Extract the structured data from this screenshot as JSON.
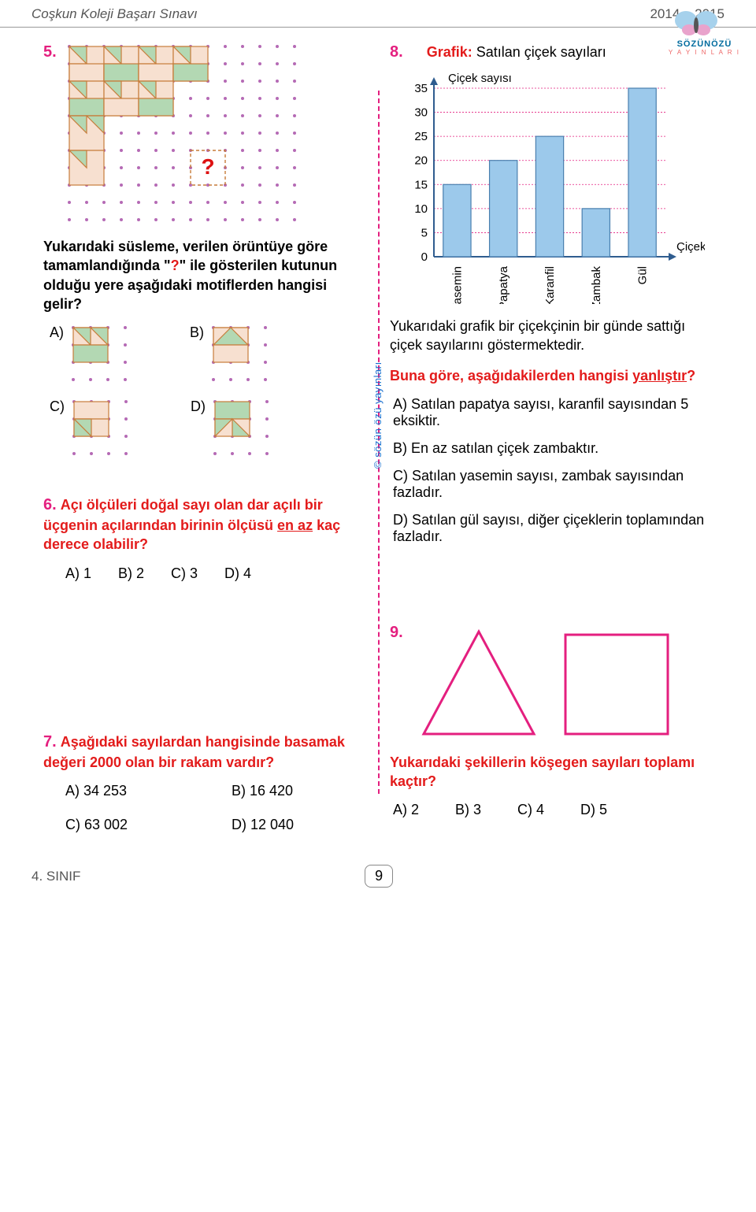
{
  "header": {
    "exam_name": "Coşkun Koleji Başarı Sınavı",
    "year": "2014 – 2015",
    "brand_top": "SÖZÜNÖZÜ",
    "brand_sub": "Y A Y I N L A R I"
  },
  "footer": {
    "grade": "4. SINIF",
    "page_number": "9"
  },
  "side_credit": "© sözün özü yayınları",
  "q5": {
    "number": "5.",
    "grid": {
      "cols": 13,
      "rows": 10,
      "cell": 22,
      "dot_color": "#b56ab5",
      "fill_beige": "#f7e0d0",
      "fill_green": "#b3d8b3",
      "border": "#c77c3a",
      "question_mark": "?"
    },
    "text_before": "Yukarıdaki süsleme, verilen örüntüye göre tamamlandığında \"",
    "text_qmark": "?",
    "text_after": "\" ile gösterilen kutunun olduğu yere aşağıdaki motiflerden hangisi gelir?",
    "options": {
      "A": "A)",
      "B": "B)",
      "C": "C)",
      "D": "D)",
      "tile": {
        "size": 48,
        "dot_color": "#b56ab5",
        "fill_beige": "#f7e0d0",
        "fill_green": "#b3d8b3",
        "border": "#c77c3a"
      }
    }
  },
  "q6": {
    "number": "6.",
    "text": "Açı ölçüleri doğal sayı olan dar açılı bir üçgenin açılarından birinin ölçüsü en az kaç derece olabilir?",
    "underline": "en az",
    "options": {
      "A": "A) 1",
      "B": "B) 2",
      "C": "C) 3",
      "D": "D) 4"
    }
  },
  "q7": {
    "number": "7.",
    "text": "Aşağıdaki sayılardan hangisinde basamak değeri 2000 olan bir rakam vardır?",
    "options": {
      "A": "A) 34 253",
      "B": "B) 16 420",
      "C": "C) 63 002",
      "D": "D) 12 040"
    }
  },
  "q8": {
    "number": "8.",
    "title_colored": "Grafik:",
    "title_rest": " Satılan çiçek sayıları",
    "chart": {
      "type": "bar",
      "y_axis_label": "Çiçek sayısı",
      "x_axis_label": "Çiçek",
      "categories": [
        "Yasemin",
        "Papatya",
        "Karanfil",
        "Zambak",
        "Gül"
      ],
      "values": [
        15,
        20,
        25,
        10,
        35
      ],
      "ylim": [
        0,
        35
      ],
      "yticks": [
        0,
        5,
        10,
        15,
        20,
        25,
        30,
        35
      ],
      "bar_color": "#9cc9eb",
      "bar_stroke": "#4a7fae",
      "grid_color": "#e41f7f",
      "axis_color": "#2f5c8f",
      "label_color": "#000",
      "bar_width": 0.6,
      "font_size": 15,
      "background": "#ffffff"
    },
    "body_text": "Yukarıdaki grafik bir çiçekçinin bir günde sattığı çiçek sayılarını göstermektedir.",
    "question": "Buna göre, aşağıdakilerden hangisi yanlıştır?",
    "underline": "yanlıştır",
    "options": {
      "A": "A) Satılan papatya sayısı, karanfil sayısından 5 eksiktir.",
      "B": "B) En az satılan çiçek zambaktır.",
      "C": "C) Satılan yasemin sayısı, zambak sayısından fazladır.",
      "D": "D) Satılan gül sayısı, diğer çiçeklerin toplamından fazladır."
    }
  },
  "q9": {
    "number": "9.",
    "shapes": {
      "triangle_stroke": "#e41f7f",
      "square_stroke": "#e41f7f",
      "stroke_width": 3
    },
    "text": "Yukarıdaki şekillerin köşegen sayıları toplamı kaçtır?",
    "options": {
      "A": "A) 2",
      "B": "B) 3",
      "C": "C) 4",
      "D": "D) 5"
    }
  },
  "logo": {
    "petal_colors": [
      "#a6d1ec",
      "#e9a3cc",
      "#f4d35e",
      "#a6d1ec"
    ],
    "text_color": "#0f6aa3"
  }
}
